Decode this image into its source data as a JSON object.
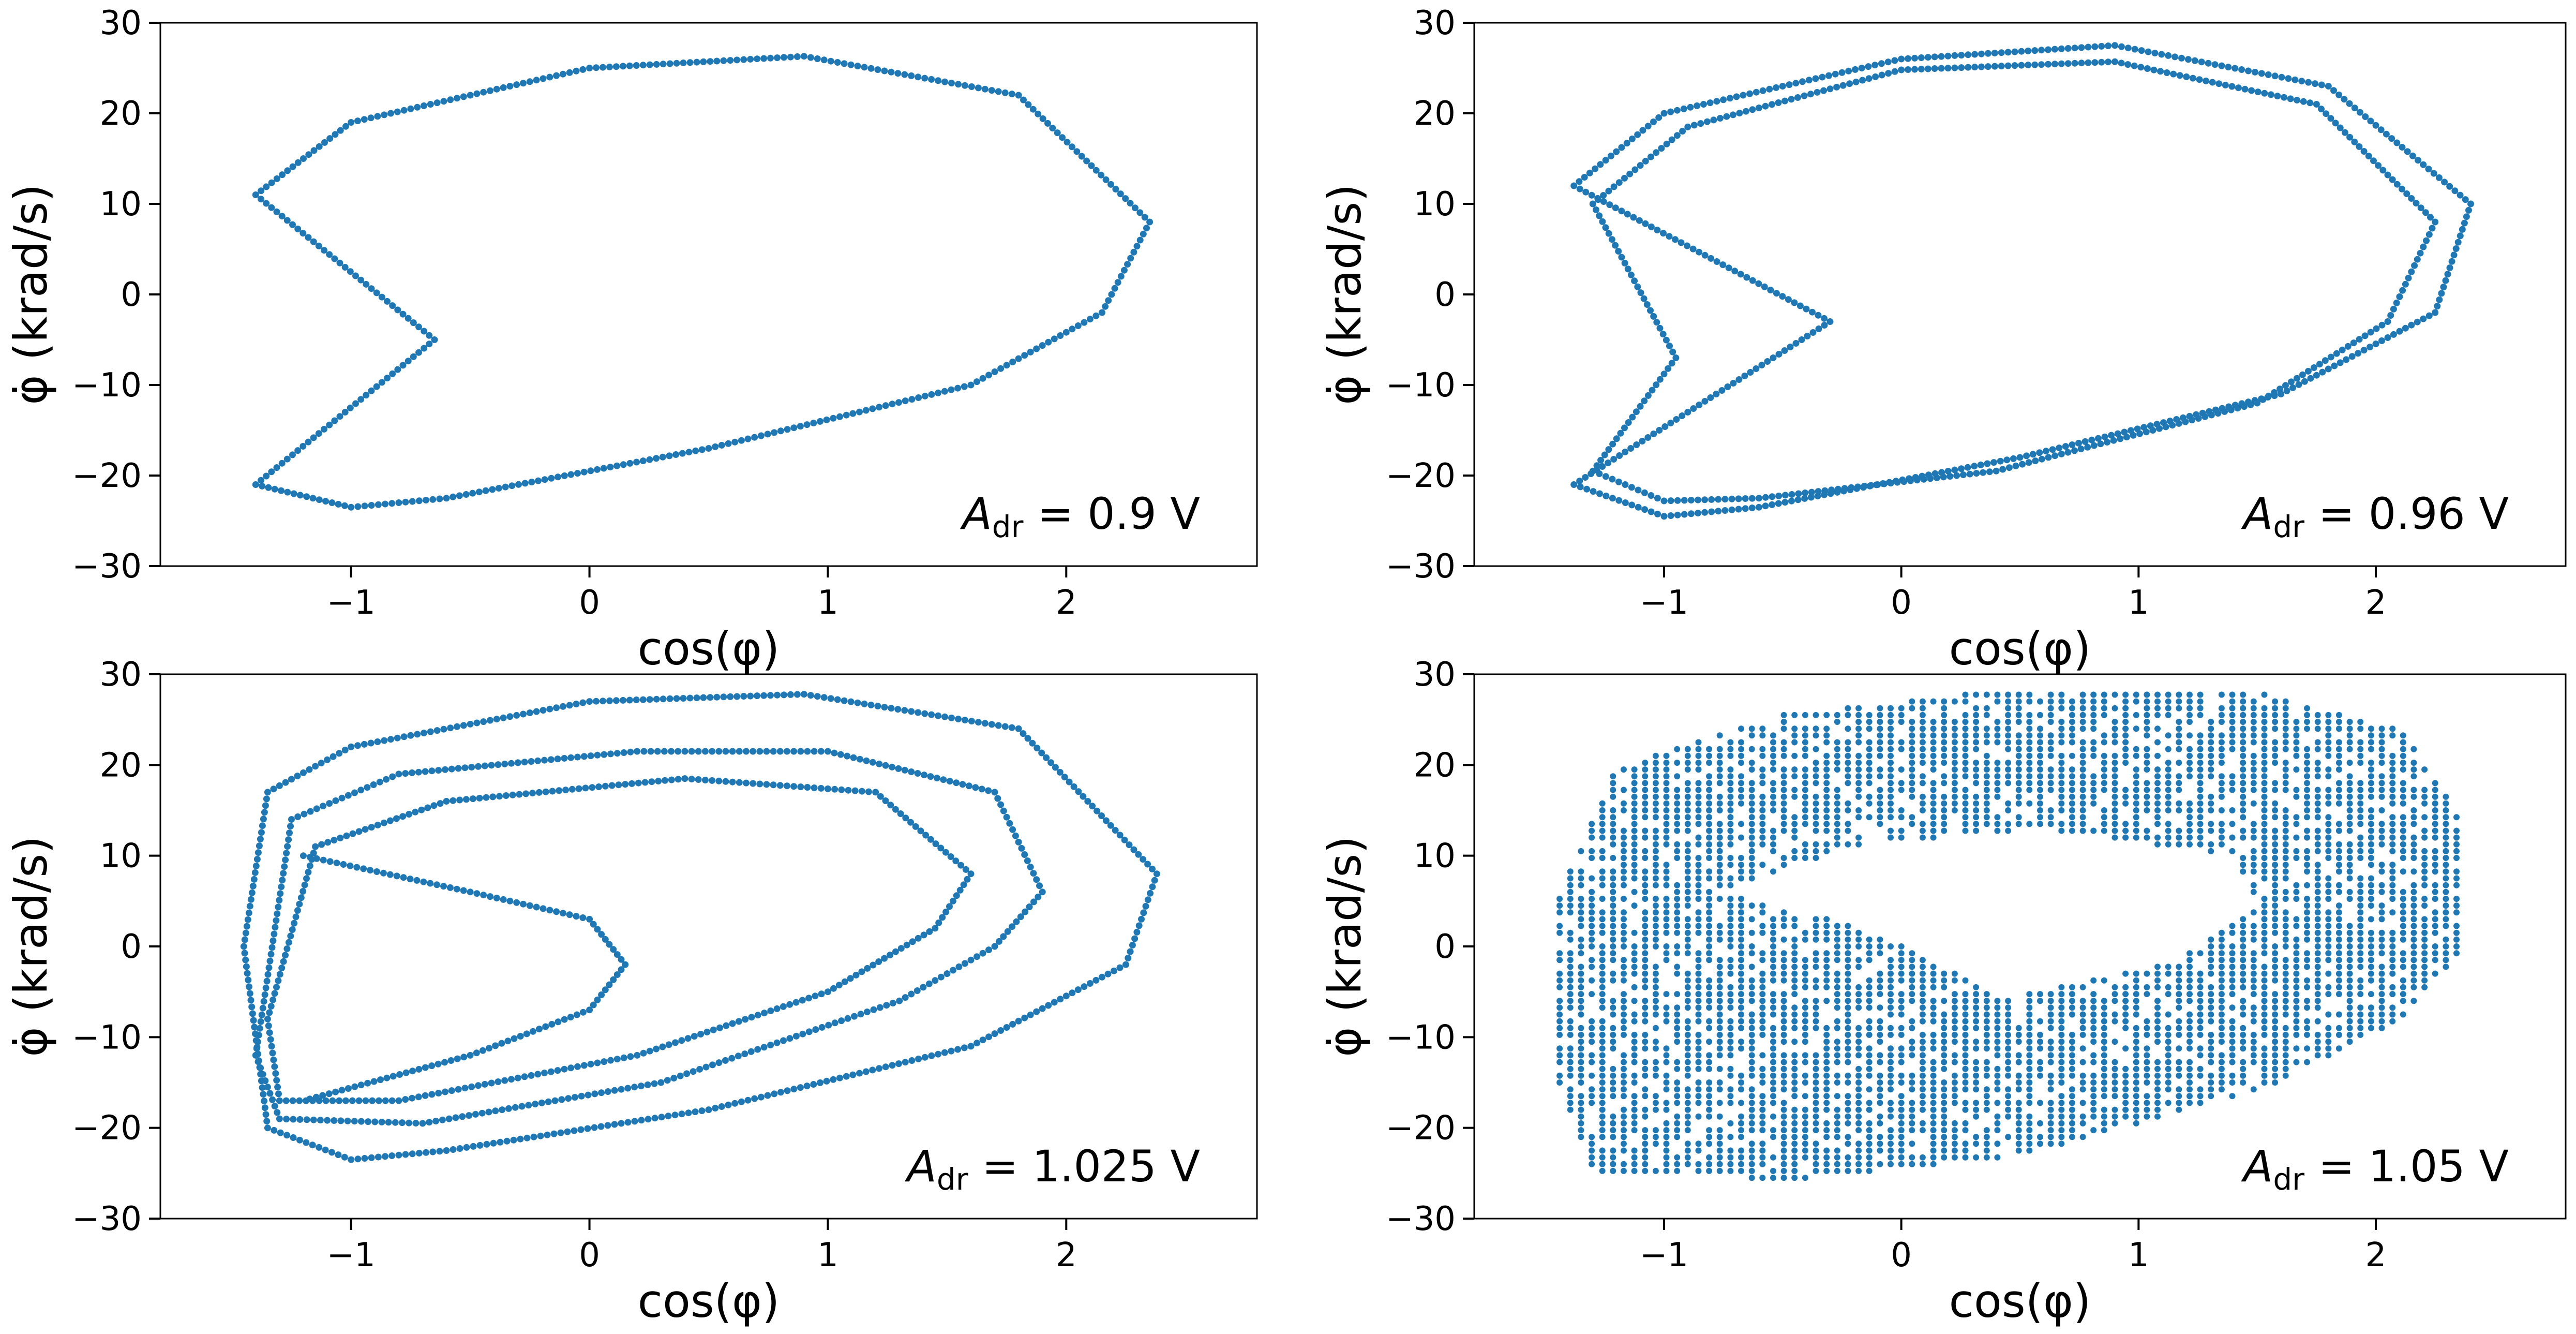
{
  "chart_data": [
    {
      "type": "scatter",
      "panel": "top-left",
      "xlabel": "cos(φ)",
      "ylabel": "φ̇ (krad/s)",
      "xlim": [
        -1.8,
        2.8
      ],
      "ylim": [
        -30,
        30
      ],
      "xticks": [
        -1,
        0,
        1,
        2
      ],
      "xticklabels": [
        "−1",
        "0",
        "1",
        "2"
      ],
      "yticks": [
        -30,
        -20,
        -10,
        0,
        10,
        20,
        30
      ],
      "yticklabels": [
        "−30",
        "−20",
        "−10",
        "0",
        "10",
        "20",
        "30"
      ],
      "grid": false,
      "annotation": {
        "symbol": "A",
        "sub": "dr",
        "value": " = 0.9 V",
        "position": "bottom-right"
      },
      "color": "#1f77b4",
      "series": [
        {
          "kind": "orbit",
          "points": [
            [
              -1.4,
              11
            ],
            [
              -1.0,
              19
            ],
            [
              0.0,
              25
            ],
            [
              0.9,
              26.3
            ],
            [
              1.8,
              22
            ],
            [
              2.35,
              8
            ],
            [
              2.15,
              -2
            ],
            [
              1.6,
              -10
            ],
            [
              0.5,
              -17
            ],
            [
              -0.6,
              -22.5
            ],
            [
              -1.0,
              -23.5
            ],
            [
              -1.4,
              -21
            ],
            [
              -0.65,
              -5
            ],
            [
              -1.4,
              11
            ]
          ]
        }
      ]
    },
    {
      "type": "scatter",
      "panel": "top-right",
      "xlabel": "cos(φ)",
      "ylabel": "φ̇ (krad/s)",
      "xlim": [
        -1.8,
        2.8
      ],
      "ylim": [
        -30,
        30
      ],
      "xticks": [
        -1,
        0,
        1,
        2
      ],
      "xticklabels": [
        "−1",
        "0",
        "1",
        "2"
      ],
      "yticks": [
        -30,
        -20,
        -10,
        0,
        10,
        20,
        30
      ],
      "yticklabels": [
        "−30",
        "−20",
        "−10",
        "0",
        "10",
        "20",
        "30"
      ],
      "grid": false,
      "annotation": {
        "symbol": "A",
        "sub": "dr",
        "value": " = 0.96 V",
        "position": "bottom-right"
      },
      "color": "#1f77b4",
      "series": [
        {
          "kind": "orbit",
          "points": [
            [
              -1.38,
              12
            ],
            [
              -1.0,
              20
            ],
            [
              0.0,
              26
            ],
            [
              0.9,
              27.5
            ],
            [
              1.8,
              23
            ],
            [
              2.4,
              10
            ],
            [
              2.25,
              -2
            ],
            [
              1.6,
              -11
            ],
            [
              0.5,
              -18
            ],
            [
              -0.6,
              -23.5
            ],
            [
              -1.0,
              -24.5
            ],
            [
              -1.38,
              -21
            ],
            [
              -0.3,
              -3
            ],
            [
              -1.38,
              12
            ]
          ]
        },
        {
          "kind": "orbit",
          "points": [
            [
              -1.3,
              10
            ],
            [
              -0.9,
              18.5
            ],
            [
              0.0,
              24.8
            ],
            [
              0.9,
              25.7
            ],
            [
              1.75,
              21
            ],
            [
              2.25,
              8
            ],
            [
              2.05,
              -3
            ],
            [
              1.5,
              -12
            ],
            [
              0.4,
              -19.5
            ],
            [
              -0.6,
              -22.5
            ],
            [
              -1.0,
              -22.8
            ],
            [
              -1.3,
              -19.5
            ],
            [
              -0.95,
              -7
            ],
            [
              -1.3,
              10
            ]
          ]
        }
      ]
    },
    {
      "type": "scatter",
      "panel": "bottom-left",
      "xlabel": "cos(φ)",
      "ylabel": "φ̇ (krad/s)",
      "xlim": [
        -1.8,
        2.8
      ],
      "ylim": [
        -30,
        30
      ],
      "xticks": [
        -1,
        0,
        1,
        2
      ],
      "xticklabels": [
        "−1",
        "0",
        "1",
        "2"
      ],
      "yticks": [
        -30,
        -20,
        -10,
        0,
        10,
        20,
        30
      ],
      "yticklabels": [
        "−30",
        "−20",
        "−10",
        "0",
        "10",
        "20",
        "30"
      ],
      "grid": false,
      "annotation": {
        "symbol": "A",
        "sub": "dr",
        "value": " = 1.025 V",
        "position": "bottom-right"
      },
      "color": "#1f77b4",
      "series": [
        {
          "kind": "orbit",
          "points": [
            [
              -1.35,
              17
            ],
            [
              -1.0,
              22
            ],
            [
              0.0,
              27
            ],
            [
              0.9,
              27.8
            ],
            [
              1.8,
              24
            ],
            [
              2.38,
              8
            ],
            [
              2.25,
              -2
            ],
            [
              1.6,
              -11
            ],
            [
              0.5,
              -18
            ],
            [
              -0.6,
              -22.5
            ],
            [
              -1.0,
              -23.5
            ],
            [
              -1.35,
              -20
            ],
            [
              -1.45,
              0
            ],
            [
              -1.35,
              17
            ]
          ]
        },
        {
          "kind": "orbit",
          "points": [
            [
              -1.25,
              14
            ],
            [
              -0.8,
              19
            ],
            [
              0.2,
              21.5
            ],
            [
              1.0,
              21.5
            ],
            [
              1.7,
              17
            ],
            [
              1.9,
              6
            ],
            [
              1.7,
              0
            ],
            [
              1.3,
              -6
            ],
            [
              0.3,
              -15
            ],
            [
              -0.7,
              -19.5
            ],
            [
              -1.3,
              -19
            ],
            [
              -1.4,
              -12
            ],
            [
              -1.25,
              14
            ]
          ]
        },
        {
          "kind": "orbit",
          "points": [
            [
              -1.15,
              11
            ],
            [
              -0.6,
              16
            ],
            [
              0.4,
              18.5
            ],
            [
              1.2,
              17
            ],
            [
              1.6,
              8
            ],
            [
              1.45,
              2
            ],
            [
              1.0,
              -5
            ],
            [
              0.2,
              -12
            ],
            [
              -0.8,
              -17
            ],
            [
              -1.3,
              -17
            ],
            [
              -1.35,
              -8
            ],
            [
              -1.15,
              11
            ]
          ]
        },
        {
          "kind": "orbit",
          "points": [
            [
              -1.2,
              10
            ],
            [
              -0.5,
              6
            ],
            [
              0.0,
              3
            ],
            [
              0.15,
              -2
            ],
            [
              0.0,
              -7
            ],
            [
              -0.5,
              -12
            ],
            [
              -1.2,
              -17
            ]
          ]
        }
      ]
    },
    {
      "type": "scatter",
      "panel": "bottom-right",
      "xlabel": "cos(φ)",
      "ylabel": "φ̇ (krad/s)",
      "xlim": [
        -1.8,
        2.8
      ],
      "ylim": [
        -30,
        30
      ],
      "xticks": [
        -1,
        0,
        1,
        2
      ],
      "xticklabels": [
        "−1",
        "0",
        "1",
        "2"
      ],
      "yticks": [
        -30,
        -20,
        -10,
        0,
        10,
        20,
        30
      ],
      "yticklabels": [
        "−30",
        "−20",
        "−10",
        "0",
        "10",
        "20",
        "30"
      ],
      "grid": false,
      "annotation": {
        "symbol": "A",
        "sub": "dr",
        "value": " = 1.05 V",
        "position": "bottom-right"
      },
      "color": "#1f77b4",
      "series": [
        {
          "kind": "filled-region",
          "points": [
            [
              -1.45,
              5
            ],
            [
              -1.2,
              20
            ],
            [
              -0.5,
              25.5
            ],
            [
              0.5,
              28.5
            ],
            [
              1.5,
              28
            ],
            [
              2.1,
              24
            ],
            [
              2.35,
              15
            ],
            [
              2.38,
              0
            ],
            [
              2.1,
              -8
            ],
            [
              1.5,
              -16
            ],
            [
              0.5,
              -23
            ],
            [
              -0.5,
              -25.8
            ],
            [
              -1.3,
              -25
            ],
            [
              -1.45,
              -15
            ],
            [
              -1.45,
              5
            ]
          ]
        },
        {
          "kind": "gap",
          "points": [
            [
              -0.8,
              6
            ],
            [
              -0.2,
              11
            ],
            [
              0.6,
              13
            ],
            [
              1.4,
              10
            ],
            [
              1.5,
              4
            ],
            [
              1.1,
              -2
            ],
            [
              0.4,
              -6
            ],
            [
              0.2,
              -2
            ],
            [
              -0.3,
              3
            ],
            [
              -0.8,
              6
            ]
          ]
        }
      ]
    }
  ]
}
